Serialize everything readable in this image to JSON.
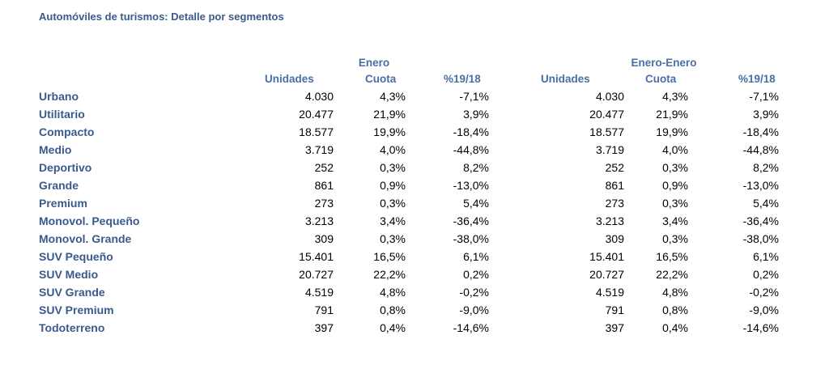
{
  "title": "Automóviles de turismos: Detalle por segmentos",
  "headers": {
    "group_left": "Enero",
    "group_right": "Enero-Enero",
    "columns_left": [
      "Unidades",
      "Cuota",
      "%19/18"
    ],
    "columns_right": [
      "Unidades",
      "Cuota",
      "%19/18"
    ]
  },
  "rows": [
    {
      "segment": "Urbano",
      "values": [
        "4.030",
        "4,3%",
        "-7,1%",
        "4.030",
        "4,3%",
        "-7,1%"
      ]
    },
    {
      "segment": "Utilitario",
      "values": [
        "20.477",
        "21,9%",
        "3,9%",
        "20.477",
        "21,9%",
        "3,9%"
      ]
    },
    {
      "segment": "Compacto",
      "values": [
        "18.577",
        "19,9%",
        "-18,4%",
        "18.577",
        "19,9%",
        "-18,4%"
      ]
    },
    {
      "segment": "Medio",
      "values": [
        "3.719",
        "4,0%",
        "-44,8%",
        "3.719",
        "4,0%",
        "-44,8%"
      ]
    },
    {
      "segment": "Deportivo",
      "values": [
        "252",
        "0,3%",
        "8,2%",
        "252",
        "0,3%",
        "8,2%"
      ]
    },
    {
      "segment": "Grande",
      "values": [
        "861",
        "0,9%",
        "-13,0%",
        "861",
        "0,9%",
        "-13,0%"
      ]
    },
    {
      "segment": "Premium",
      "values": [
        "273",
        "0,3%",
        "5,4%",
        "273",
        "0,3%",
        "5,4%"
      ]
    },
    {
      "segment": "Monovol. Pequeño",
      "values": [
        "3.213",
        "3,4%",
        "-36,4%",
        "3.213",
        "3,4%",
        "-36,4%"
      ]
    },
    {
      "segment": "Monovol. Grande",
      "values": [
        "309",
        "0,3%",
        "-38,0%",
        "309",
        "0,3%",
        "-38,0%"
      ]
    },
    {
      "segment": "SUV Pequeño",
      "values": [
        "15.401",
        "16,5%",
        "6,1%",
        "15.401",
        "16,5%",
        "6,1%"
      ]
    },
    {
      "segment": "SUV Medio",
      "values": [
        "20.727",
        "22,2%",
        "0,2%",
        "20.727",
        "22,2%",
        "0,2%"
      ]
    },
    {
      "segment": "SUV Grande",
      "values": [
        "4.519",
        "4,8%",
        "-0,2%",
        "4.519",
        "4,8%",
        "-0,2%"
      ]
    },
    {
      "segment": "SUV Premium",
      "values": [
        "791",
        "0,8%",
        "-9,0%",
        "791",
        "0,8%",
        "-9,0%"
      ]
    },
    {
      "segment": "Todoterreno",
      "values": [
        "397",
        "0,4%",
        "-14,6%",
        "397",
        "0,4%",
        "-14,6%"
      ]
    }
  ],
  "colors": {
    "title": "#3a5a8c",
    "header": "#4a6fa5",
    "text": "#000000",
    "background": "#ffffff"
  }
}
